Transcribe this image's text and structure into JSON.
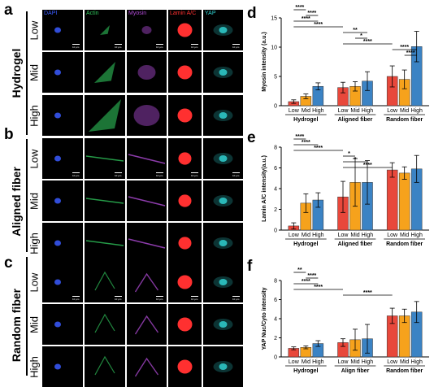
{
  "panel_letters": [
    "a",
    "b",
    "c",
    "d",
    "e",
    "f"
  ],
  "row_groups": [
    "Hydrogel",
    "Aligned fiber",
    "Random fiber"
  ],
  "levels": [
    "Low",
    "Mid",
    "High"
  ],
  "channels": [
    {
      "name": "DAPI",
      "color": "#3a5bff"
    },
    {
      "name": "Actin",
      "color": "#2fc25a"
    },
    {
      "name": "Myosin",
      "color": "#b04bd6"
    },
    {
      "name": "Lamin A/C",
      "color": "#ff3030"
    },
    {
      "name": "YAP",
      "color": "#30d0d0"
    }
  ],
  "scale_bar_label": "10 µm",
  "colors": {
    "low": "#e8483b",
    "mid": "#f6a21c",
    "high": "#3b83c4"
  },
  "chart_data": [
    {
      "type": "bar",
      "panel": "d",
      "ylabel": "Myosin intensity (a.u.)",
      "ylim": [
        0,
        15
      ],
      "yticks": [
        0,
        5,
        10,
        15
      ],
      "groups": [
        "Hydrogel",
        "Aligned fiber",
        "Random fiber"
      ],
      "categories": [
        "Low",
        "Mid",
        "High"
      ],
      "values": [
        [
          0.7,
          1.6,
          3.3
        ],
        [
          3.1,
          3.3,
          4.2
        ],
        [
          5.0,
          4.5,
          10.1
        ]
      ],
      "errors": [
        [
          0.3,
          0.4,
          0.6
        ],
        [
          0.9,
          0.8,
          1.6
        ],
        [
          1.8,
          1.6,
          2.6
        ]
      ],
      "significance": [
        {
          "from": [
            0,
            0
          ],
          "to": [
            0,
            1
          ],
          "label": "****"
        },
        {
          "from": [
            0,
            1
          ],
          "to": [
            0,
            2
          ],
          "label": "****"
        },
        {
          "from": [
            0,
            0
          ],
          "to": [
            0,
            2
          ],
          "label": "****"
        },
        {
          "from": [
            0,
            0
          ],
          "to": [
            1,
            0
          ],
          "label": "****"
        },
        {
          "from": [
            1,
            0
          ],
          "to": [
            1,
            2
          ],
          "label": "**"
        },
        {
          "from": [
            1,
            1
          ],
          "to": [
            1,
            2
          ],
          "label": "*"
        },
        {
          "from": [
            1,
            0
          ],
          "to": [
            2,
            0
          ],
          "label": "****"
        },
        {
          "from": [
            2,
            0
          ],
          "to": [
            2,
            2
          ],
          "label": "****"
        },
        {
          "from": [
            2,
            1
          ],
          "to": [
            2,
            2
          ],
          "label": "****"
        }
      ]
    },
    {
      "type": "bar",
      "panel": "e",
      "ylabel": "Lamin A/C intensity(a.u.)",
      "ylim": [
        0,
        8
      ],
      "yticks": [
        0,
        2,
        4,
        6,
        8
      ],
      "groups": [
        "Hydrogel",
        "Aligned fiber",
        "Random fiber"
      ],
      "categories": [
        "Low",
        "Mid",
        "High"
      ],
      "values": [
        [
          0.4,
          2.6,
          2.9
        ],
        [
          3.2,
          4.6,
          4.6
        ],
        [
          5.8,
          5.5,
          5.9
        ]
      ],
      "errors": [
        [
          0.3,
          0.9,
          0.7
        ],
        [
          1.5,
          2.3,
          2.1
        ],
        [
          0.7,
          0.6,
          1.3
        ]
      ],
      "significance": [
        {
          "from": [
            0,
            0
          ],
          "to": [
            0,
            1
          ],
          "label": "****"
        },
        {
          "from": [
            0,
            0
          ],
          "to": [
            0,
            2
          ],
          "label": "****"
        },
        {
          "from": [
            0,
            0
          ],
          "to": [
            1,
            0
          ],
          "label": "****"
        },
        {
          "from": [
            1,
            0
          ],
          "to": [
            1,
            1
          ],
          "label": "*"
        },
        {
          "from": [
            1,
            0
          ],
          "to": [
            1,
            2
          ],
          "label": "*"
        },
        {
          "from": [
            1,
            0
          ],
          "to": [
            2,
            0
          ],
          "label": "****"
        }
      ]
    },
    {
      "type": "bar",
      "panel": "f",
      "ylabel": "YAP Nuc/Cyto intensity",
      "ylim": [
        0,
        8
      ],
      "yticks": [
        0,
        2,
        4,
        6,
        8
      ],
      "groups": [
        "Hydrogel",
        "Align fiber",
        "Random fiber"
      ],
      "categories": [
        "Low",
        "Mid",
        "High"
      ],
      "values": [
        [
          0.9,
          1.0,
          1.4
        ],
        [
          1.5,
          1.8,
          1.9
        ],
        [
          4.3,
          4.3,
          4.7
        ]
      ],
      "errors": [
        [
          0.15,
          0.15,
          0.3
        ],
        [
          0.4,
          1.1,
          1.5
        ],
        [
          0.8,
          0.7,
          1.1
        ]
      ],
      "significance": [
        {
          "from": [
            0,
            0
          ],
          "to": [
            0,
            1
          ],
          "label": "**"
        },
        {
          "from": [
            0,
            1
          ],
          "to": [
            0,
            2
          ],
          "label": "****"
        },
        {
          "from": [
            0,
            0
          ],
          "to": [
            0,
            2
          ],
          "label": "****"
        },
        {
          "from": [
            0,
            0
          ],
          "to": [
            1,
            0
          ],
          "label": "****"
        },
        {
          "from": [
            1,
            0
          ],
          "to": [
            2,
            0
          ],
          "label": "****"
        }
      ]
    }
  ]
}
